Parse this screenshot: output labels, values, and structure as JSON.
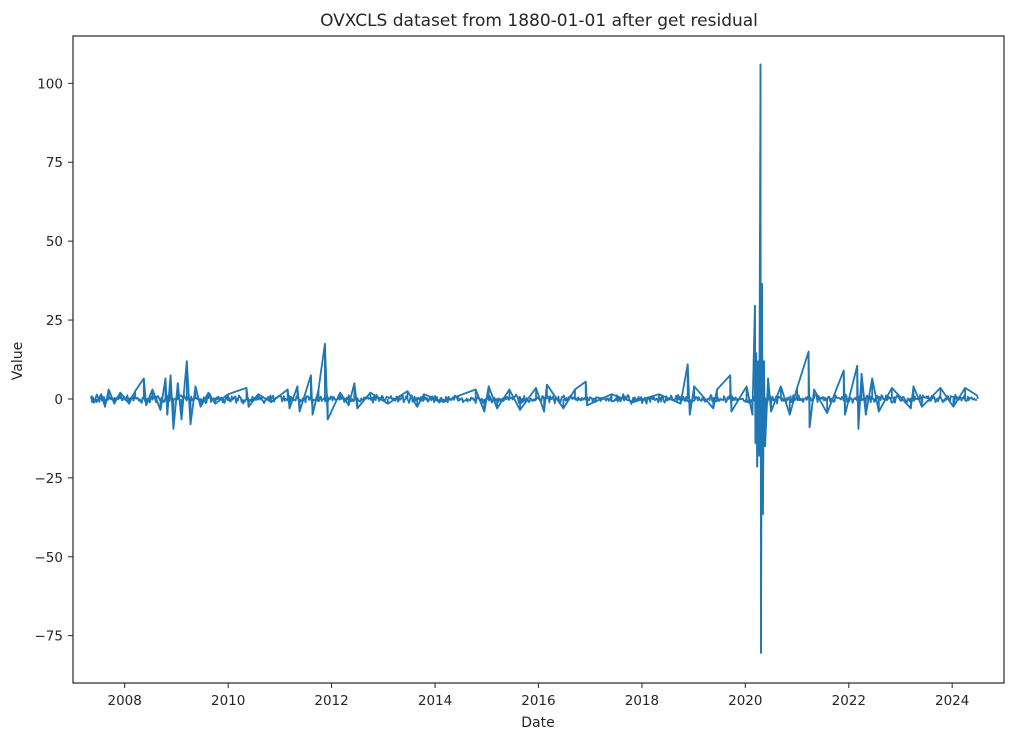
{
  "chart_data": {
    "type": "line",
    "title": "OVXCLS dataset from 1880-01-01 after get residual",
    "xlabel": "Date",
    "ylabel": "Value",
    "x_range": [
      "2007-01-01",
      "2025-01-01"
    ],
    "ylim": [
      -90,
      115
    ],
    "grid": false,
    "legend": "none",
    "x_ticks": [
      "2008",
      "2010",
      "2012",
      "2014",
      "2016",
      "2018",
      "2020",
      "2022",
      "2024"
    ],
    "y_ticks": [
      100,
      75,
      50,
      25,
      0,
      -25,
      -50,
      -75
    ],
    "y_tick_labels": [
      "100",
      "75",
      "50",
      "25",
      "0",
      "−25",
      "−50",
      "−75"
    ],
    "series": [
      {
        "color": "#1f77b4",
        "data_start": "2007-05-10",
        "data_end": "2024-06-28",
        "data_frequency": "daily (trading days)",
        "points": [
          [
            "2007-05-10",
            1.0
          ],
          [
            "2007-06-15",
            -1.0
          ],
          [
            "2007-07-20",
            1.5
          ],
          [
            "2007-08-15",
            -2.5
          ],
          [
            "2007-09-10",
            3.0
          ],
          [
            "2007-10-20",
            -1.5
          ],
          [
            "2007-12-01",
            2.0
          ],
          [
            "2008-02-01",
            -1.5
          ],
          [
            "2008-03-15",
            2.5
          ],
          [
            "2008-05-15",
            6.5
          ],
          [
            "2008-06-01",
            -2.0
          ],
          [
            "2008-07-15",
            3.0
          ],
          [
            "2008-09-10",
            -3.5
          ],
          [
            "2008-10-15",
            6.5
          ],
          [
            "2008-10-28",
            -5.0
          ],
          [
            "2008-11-20",
            7.5
          ],
          [
            "2008-12-10",
            -9.5
          ],
          [
            "2009-01-10",
            5.0
          ],
          [
            "2009-02-05",
            -6.5
          ],
          [
            "2009-03-15",
            12.0
          ],
          [
            "2009-04-10",
            -8.0
          ],
          [
            "2009-05-15",
            4.0
          ],
          [
            "2009-06-20",
            -2.5
          ],
          [
            "2009-08-15",
            2.0
          ],
          [
            "2009-10-01",
            -1.5
          ],
          [
            "2010-01-01",
            1.5
          ],
          [
            "2010-05-10",
            3.5
          ],
          [
            "2010-05-25",
            -2.5
          ],
          [
            "2010-08-01",
            1.5
          ],
          [
            "2010-11-01",
            -1.0
          ],
          [
            "2011-02-25",
            3.0
          ],
          [
            "2011-03-10",
            -3.0
          ],
          [
            "2011-05-05",
            4.0
          ],
          [
            "2011-05-20",
            -4.0
          ],
          [
            "2011-08-08",
            7.5
          ],
          [
            "2011-08-20",
            -5.0
          ],
          [
            "2011-10-01",
            3.0
          ],
          [
            "2011-11-15",
            17.5
          ],
          [
            "2011-12-05",
            -6.5
          ],
          [
            "2012-03-01",
            2.0
          ],
          [
            "2012-05-01",
            -2.0
          ],
          [
            "2012-06-10",
            5.0
          ],
          [
            "2012-07-01",
            -3.0
          ],
          [
            "2012-10-01",
            2.0
          ],
          [
            "2013-02-01",
            -1.5
          ],
          [
            "2013-06-20",
            2.5
          ],
          [
            "2013-08-28",
            -2.5
          ],
          [
            "2013-10-15",
            1.5
          ],
          [
            "2014-03-01",
            -1.0
          ],
          [
            "2014-06-15",
            1.0
          ],
          [
            "2014-10-15",
            3.0
          ],
          [
            "2014-12-15",
            -4.0
          ],
          [
            "2015-01-15",
            4.0
          ],
          [
            "2015-03-15",
            -3.0
          ],
          [
            "2015-06-10",
            3.0
          ],
          [
            "2015-08-24",
            -3.5
          ],
          [
            "2015-12-15",
            3.5
          ],
          [
            "2016-02-10",
            -4.0
          ],
          [
            "2016-03-01",
            4.5
          ],
          [
            "2016-06-25",
            -3.0
          ],
          [
            "2016-09-15",
            3.0
          ],
          [
            "2016-11-30",
            5.5
          ],
          [
            "2016-12-10",
            -2.0
          ],
          [
            "2017-06-01",
            1.5
          ],
          [
            "2017-11-01",
            -1.0
          ],
          [
            "2018-05-01",
            1.5
          ],
          [
            "2018-10-01",
            -1.5
          ],
          [
            "2018-11-20",
            11.0
          ],
          [
            "2018-12-05",
            -5.0
          ],
          [
            "2019-01-05",
            4.0
          ],
          [
            "2019-05-20",
            -3.0
          ],
          [
            "2019-06-15",
            3.0
          ],
          [
            "2019-09-16",
            7.5
          ],
          [
            "2019-09-25",
            -4.0
          ],
          [
            "2020-01-10",
            4.0
          ],
          [
            "2020-02-20",
            -5.0
          ],
          [
            "2020-03-09",
            29.5
          ],
          [
            "2020-03-12",
            -14.0
          ],
          [
            "2020-03-18",
            14.5
          ],
          [
            "2020-03-25",
            -21.5
          ],
          [
            "2020-04-01",
            12.0
          ],
          [
            "2020-04-08",
            -18.0
          ],
          [
            "2020-04-17",
            106.0
          ],
          [
            "2020-04-21",
            -80.5
          ],
          [
            "2020-04-28",
            36.5
          ],
          [
            "2020-05-04",
            -36.5
          ],
          [
            "2020-05-12",
            12.0
          ],
          [
            "2020-05-20",
            -15.0
          ],
          [
            "2020-06-10",
            6.5
          ],
          [
            "2020-07-01",
            -4.0
          ],
          [
            "2020-09-08",
            4.0
          ],
          [
            "2020-11-10",
            -5.0
          ],
          [
            "2021-01-01",
            3.5
          ],
          [
            "2021-03-23",
            15.0
          ],
          [
            "2021-03-30",
            -9.0
          ],
          [
            "2021-05-01",
            3.0
          ],
          [
            "2021-08-01",
            -4.5
          ],
          [
            "2021-11-26",
            9.0
          ],
          [
            "2021-12-05",
            -5.0
          ],
          [
            "2022-03-01",
            10.5
          ],
          [
            "2022-03-10",
            -9.5
          ],
          [
            "2022-04-01",
            8.0
          ],
          [
            "2022-05-01",
            -5.0
          ],
          [
            "2022-06-15",
            6.5
          ],
          [
            "2022-08-01",
            -4.0
          ],
          [
            "2022-11-01",
            3.5
          ],
          [
            "2023-03-15",
            -3.0
          ],
          [
            "2023-04-03",
            4.0
          ],
          [
            "2023-06-01",
            -2.5
          ],
          [
            "2023-10-10",
            3.5
          ],
          [
            "2024-01-10",
            -2.5
          ],
          [
            "2024-04-01",
            3.5
          ],
          [
            "2024-06-28",
            1.0
          ]
        ]
      }
    ]
  }
}
